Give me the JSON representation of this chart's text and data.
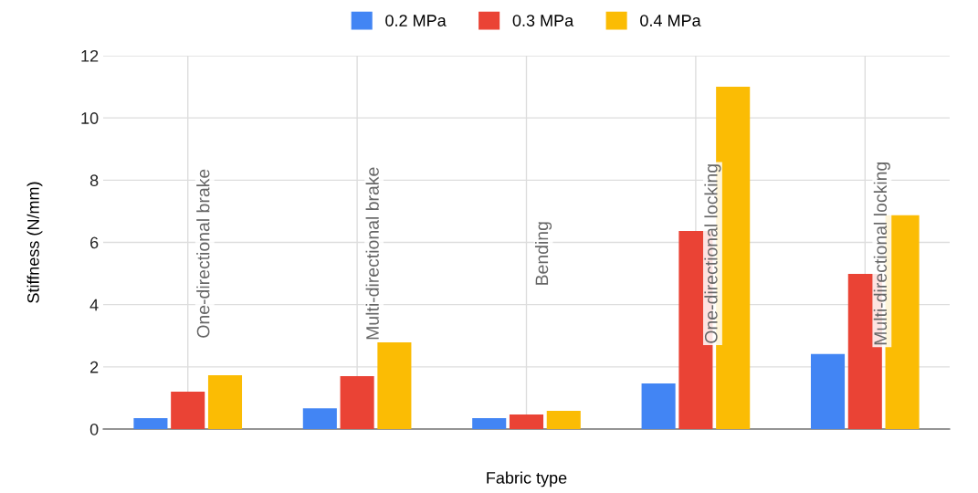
{
  "chart_data": {
    "type": "bar",
    "xlabel": "Fabric type",
    "ylabel": "Stiffness (N/mm)",
    "categories": [
      "One-directional brake",
      "Multi-directional brake",
      "Bending",
      "One-directional locking",
      "Multi-directional locking"
    ],
    "series": [
      {
        "name": "0.2 MPa",
        "color": "#4285f4",
        "values": [
          0.35,
          0.67,
          0.35,
          1.47,
          2.41
        ]
      },
      {
        "name": "0.3 MPa",
        "color": "#ea4335",
        "values": [
          1.2,
          1.7,
          0.47,
          6.37,
          4.99
        ]
      },
      {
        "name": "0.4 MPa",
        "color": "#fbbc04",
        "values": [
          1.73,
          2.79,
          0.59,
          11.0,
          6.87
        ]
      }
    ],
    "ylim": [
      0,
      12
    ],
    "yticks": [
      0,
      2,
      4,
      6,
      8,
      10,
      12
    ],
    "grid": true,
    "legend": "top"
  }
}
